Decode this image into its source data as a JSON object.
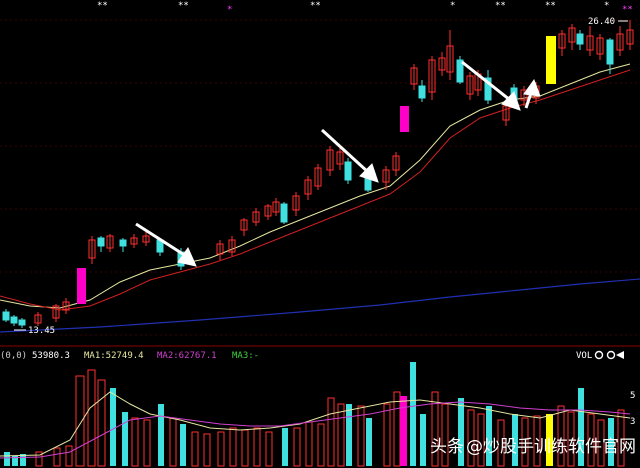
{
  "price_panel": {
    "high_label": "26.40",
    "low_label": "13.45",
    "top_markers": [
      "**",
      "**",
      "*",
      "**",
      "*",
      "**",
      "**",
      "*",
      "**"
    ]
  },
  "volume_panel": {
    "period_label": "(0,0)",
    "vol_value": "53980.3",
    "ma1_label": "MA1:52749.4",
    "ma2_label": "MA2:62767.1",
    "ma3_label": "MA3:-",
    "indicator_name": "VOL",
    "level_5": "5",
    "level_3": "3"
  },
  "watermark": {
    "prefix": "头条",
    "handle": "@炒股手训练软件官网"
  },
  "colors": {
    "up": "#ff3030",
    "down": "#40e0e0",
    "ma1": "#e6e6a0",
    "ma2": "#d02020",
    "ma3": "#2030b0",
    "vol_ma1": "#e6e6a0",
    "vol_ma2": "#d040d0",
    "highlight_magenta": "#ff00c8",
    "highlight_yellow": "#ffff00"
  }
}
